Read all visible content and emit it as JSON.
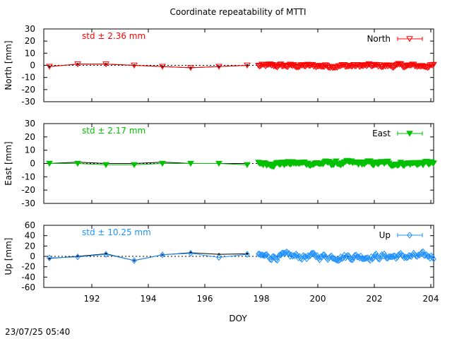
{
  "title": "Coordinate repeatability of MTTI",
  "timestamp": "23/07/25 05:40",
  "xlabel": "DOY",
  "xlim": [
    190.3,
    204.1
  ],
  "xticks": [
    192,
    194,
    196,
    198,
    200,
    202,
    204
  ],
  "chart_data": [
    {
      "type": "line",
      "panel": "north",
      "ylabel": "North [mm]",
      "ylim": [
        -30,
        30
      ],
      "yticks": [
        -30,
        -20,
        -10,
        0,
        10,
        20,
        30
      ],
      "std_text": "std ± 2.36 mm",
      "legend": "North",
      "color": "#ff0000",
      "marker": "triangle-down-open",
      "grid": false,
      "legend_position": "top-right",
      "daily": {
        "x": [
          190.5,
          191.5,
          192.5,
          193.5,
          194.5,
          195.5,
          196.5,
          197.5
        ],
        "y": [
          -1,
          1,
          1,
          0,
          -1,
          -2,
          -1,
          0
        ]
      },
      "daily_black": {
        "x": [
          190.5,
          191.5,
          192.5,
          193.5,
          194.5,
          195.5,
          196.5,
          197.5
        ],
        "y": [
          -1,
          1,
          1,
          0,
          -1,
          -2,
          -1,
          0
        ]
      },
      "dense": {
        "x_start": 197.9,
        "x_end": 204.1,
        "n": 150,
        "amplitude": 3.0,
        "offset": -0.5
      }
    },
    {
      "type": "line",
      "panel": "east",
      "ylabel": "East [mm]",
      "ylim": [
        -30,
        30
      ],
      "yticks": [
        -30,
        -20,
        -10,
        0,
        10,
        20,
        30
      ],
      "std_text": "std ± 2.17 mm",
      "legend": "East",
      "color": "#00c000",
      "marker": "triangle-down-filled",
      "grid": false,
      "legend_position": "top-right",
      "daily": {
        "x": [
          190.5,
          191.5,
          192.5,
          193.5,
          194.5,
          195.5,
          196.5,
          197.5
        ],
        "y": [
          0,
          0,
          -1,
          -1,
          0,
          0,
          0,
          -1
        ]
      },
      "daily_black": {
        "x": [
          190.5,
          191.5,
          192.5,
          193.5,
          194.5,
          195.5,
          196.5,
          197.5
        ],
        "y": [
          0,
          1,
          0,
          0,
          1,
          0,
          0,
          0
        ]
      },
      "dense": {
        "x_start": 197.9,
        "x_end": 204.1,
        "n": 150,
        "amplitude": 3.5,
        "offset": 0
      }
    },
    {
      "type": "line",
      "panel": "up",
      "ylabel": "Up [mm]",
      "ylim": [
        -60,
        60
      ],
      "yticks": [
        -60,
        -40,
        -20,
        0,
        20,
        40,
        60
      ],
      "std_text": "std ± 10.25 mm",
      "legend": "Up",
      "color": "#1e90ff",
      "marker": "diamond-open",
      "grid": false,
      "legend_position": "top-right",
      "daily": {
        "x": [
          190.5,
          191.5,
          192.5,
          193.5,
          194.5,
          195.5,
          196.5,
          197.5
        ],
        "y": [
          -3,
          -1,
          4,
          -8,
          3,
          6,
          -2,
          4
        ]
      },
      "daily_black": {
        "x": [
          190.5,
          191.5,
          192.5,
          193.5,
          194.5,
          195.5,
          196.5,
          197.5
        ],
        "y": [
          -4,
          0,
          5,
          -8,
          3,
          7,
          4,
          5
        ]
      },
      "dense": {
        "x_start": 197.9,
        "x_end": 204.1,
        "n": 150,
        "amplitude": 12,
        "offset": 0
      }
    }
  ]
}
